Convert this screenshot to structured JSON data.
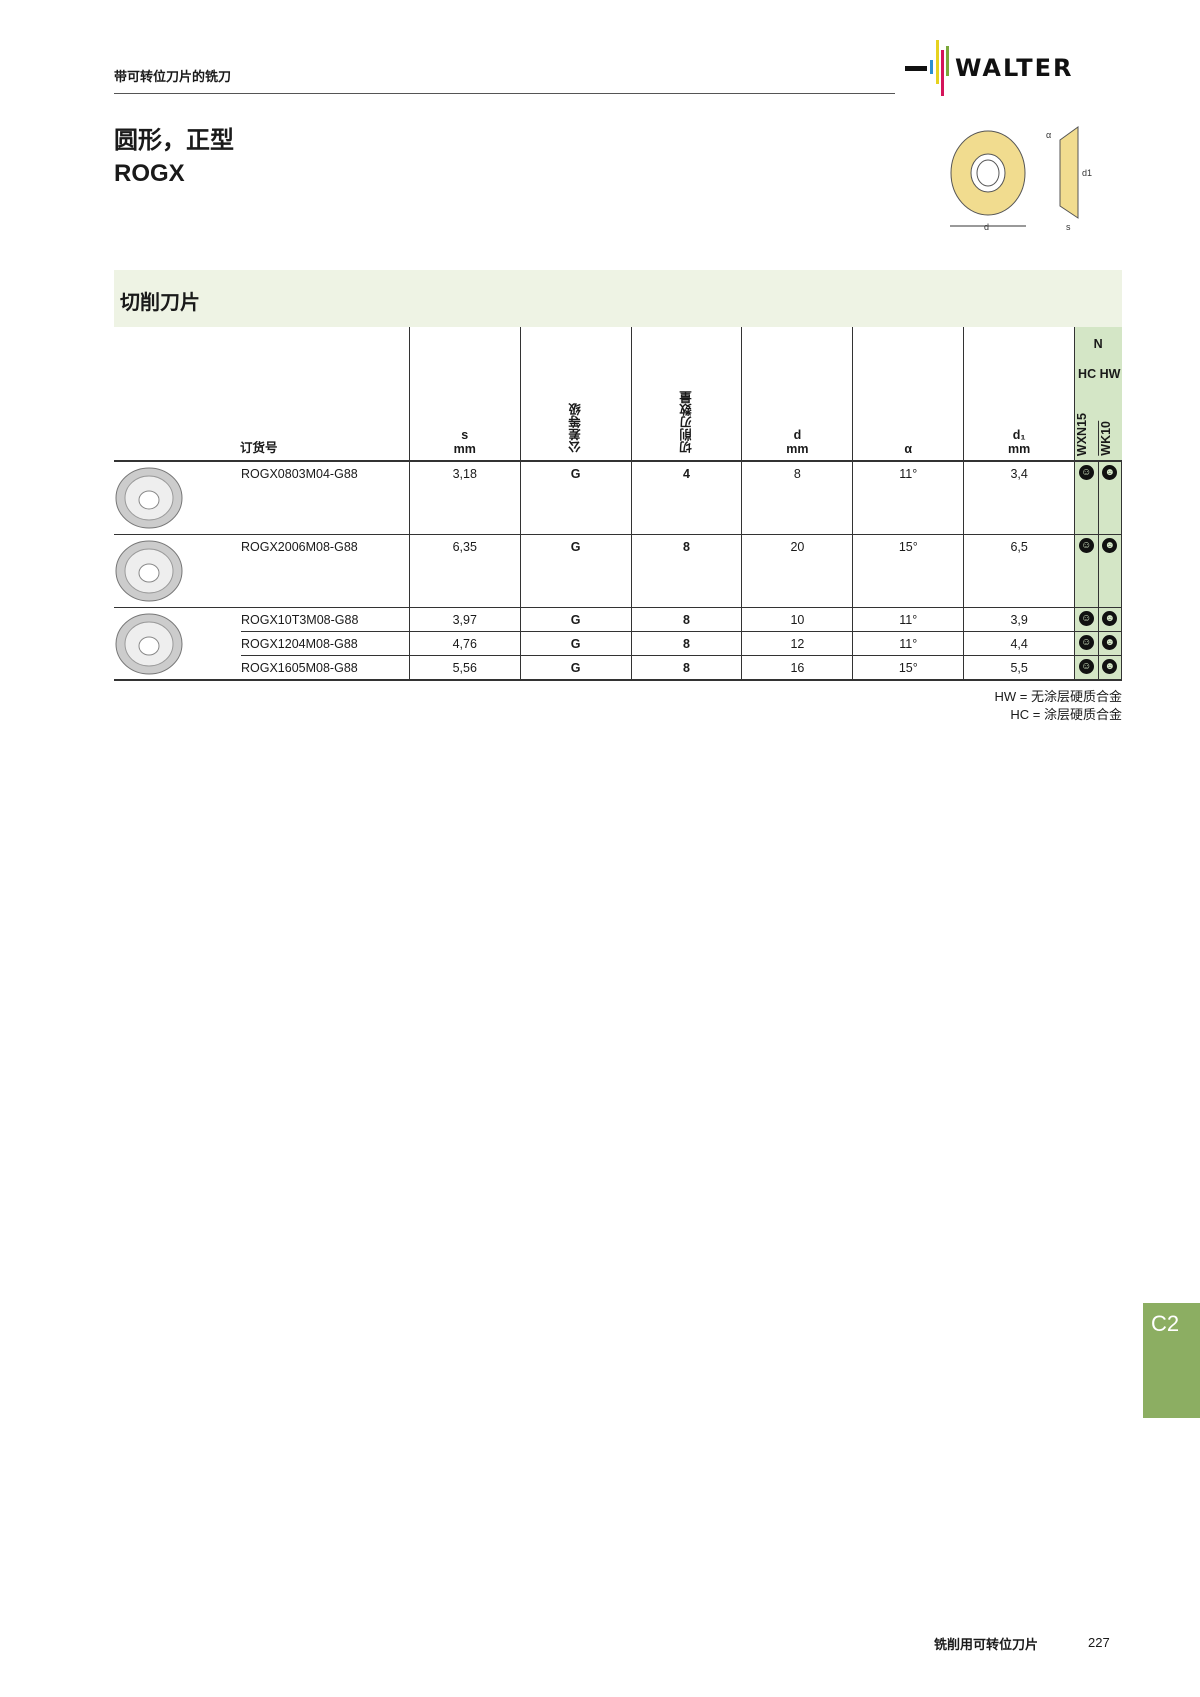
{
  "header": {
    "section": "带可转位刀片的铣刀",
    "logo_text": "WALTER"
  },
  "title": {
    "line1": "圆形，正型",
    "line2": "ROGX"
  },
  "diagram": {
    "labels": {
      "alpha": "α",
      "d": "d",
      "d1": "d1",
      "s": "s"
    }
  },
  "band": {
    "title": "切削刀片"
  },
  "table": {
    "headers": {
      "order_no": "订货号",
      "s": "s",
      "s_unit": "mm",
      "tolerance": "公差等级",
      "edges": "切削刃数量",
      "d": "d",
      "d_unit": "mm",
      "alpha": "α",
      "d1": "d₁",
      "d1_unit": "mm",
      "group": "N",
      "hc": "HC",
      "hw": "HW",
      "grade1": "WXN15",
      "grade2": "WK10"
    },
    "rows": [
      {
        "code": "ROGX0803M04-G88",
        "s": "3,18",
        "tol": "G",
        "edges": "4",
        "d": "8",
        "alpha": "11°",
        "d1": "3,4"
      },
      {
        "code": "ROGX2006M08-G88",
        "s": "6,35",
        "tol": "G",
        "edges": "8",
        "d": "20",
        "alpha": "15°",
        "d1": "6,5"
      },
      {
        "code": "ROGX10T3M08-G88",
        "s": "3,97",
        "tol": "G",
        "edges": "8",
        "d": "10",
        "alpha": "11°",
        "d1": "3,9"
      },
      {
        "code": "ROGX1204M08-G88",
        "s": "4,76",
        "tol": "G",
        "edges": "8",
        "d": "12",
        "alpha": "11°",
        "d1": "4,4"
      },
      {
        "code": "ROGX1605M08-G88",
        "s": "5,56",
        "tol": "G",
        "edges": "8",
        "d": "16",
        "alpha": "15°",
        "d1": "5,5"
      }
    ],
    "suitability_icon": "smiley-icon"
  },
  "notes": {
    "hw": "HW = 无涂层硬质合金",
    "hc": "HC = 涂层硬质合金"
  },
  "side_tab": {
    "label": "C2",
    "color": "#8cae62"
  },
  "footer": {
    "label": "铣削用可转位刀片",
    "page": "227"
  }
}
